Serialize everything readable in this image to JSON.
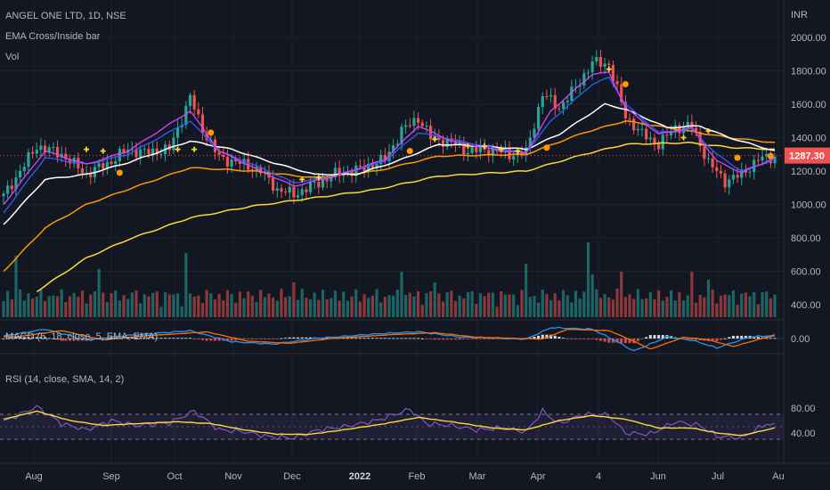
{
  "legend": {
    "symbol": "ANGEL ONE LTD, 1D, NSE",
    "indicator": "EMA Cross/Inside bar",
    "volume": "Vol",
    "macd": "MACD (6, 18, close, 5, EMA, EMA)",
    "rsi": "RSI (14, close, SMA, 14, 2)"
  },
  "currency": "INR",
  "last_price": "1287.30",
  "colors": {
    "background": "#131722",
    "up": "#26a69a",
    "down": "#ef5350",
    "ema_pink": "#e040fb",
    "ema_blue": "#2962ff",
    "ema_white": "#ffffff",
    "ema_orange": "#ff9800",
    "ema_yellow": "#fdd835",
    "rsi_line": "#7e57c2",
    "rsi_ma": "#fdd835",
    "macd_line": "#2196f3",
    "signal_line": "#ff6d00",
    "price_label": "#ef5350"
  },
  "chart_data": {
    "type": "candlestick",
    "price_axis": {
      "ticks": [
        "2000.00",
        "1800.00",
        "1600.00",
        "1400.00",
        "1200.00",
        "1000.00",
        "800.00",
        "600.00",
        "400.00"
      ],
      "values": [
        2000,
        1800,
        1600,
        1400,
        1200,
        1000,
        800,
        600,
        400
      ]
    },
    "macd_axis": {
      "ticks": [
        "0.00"
      ]
    },
    "rsi_axis": {
      "ticks": [
        "80.00",
        "40.00"
      ],
      "bands": [
        70,
        30
      ],
      "mid": 50
    },
    "x_labels": [
      {
        "label": "Aug",
        "bold": false
      },
      {
        "label": "Sep",
        "bold": false
      },
      {
        "label": "Oct",
        "bold": false
      },
      {
        "label": "Nov",
        "bold": false
      },
      {
        "label": "Dec",
        "bold": false
      },
      {
        "label": "2022",
        "bold": true
      },
      {
        "label": "Feb",
        "bold": false
      },
      {
        "label": "Mar",
        "bold": false
      },
      {
        "label": "Apr",
        "bold": false
      },
      {
        "label": "4",
        "bold": false
      },
      {
        "label": "Jun",
        "bold": false
      },
      {
        "label": "Jul",
        "bold": false
      },
      {
        "label": "Au",
        "bold": false
      }
    ],
    "close_keypoints": [
      [
        0,
        1050
      ],
      [
        8,
        1350
      ],
      [
        14,
        1300
      ],
      [
        20,
        1180
      ],
      [
        26,
        1260
      ],
      [
        30,
        1330
      ],
      [
        34,
        1310
      ],
      [
        40,
        1330
      ],
      [
        45,
        1640
      ],
      [
        48,
        1450
      ],
      [
        52,
        1280
      ],
      [
        58,
        1240
      ],
      [
        62,
        1200
      ],
      [
        66,
        1090
      ],
      [
        70,
        1060
      ],
      [
        76,
        1130
      ],
      [
        80,
        1180
      ],
      [
        86,
        1210
      ],
      [
        92,
        1270
      ],
      [
        96,
        1440
      ],
      [
        100,
        1520
      ],
      [
        103,
        1400
      ],
      [
        108,
        1370
      ],
      [
        112,
        1320
      ],
      [
        118,
        1330
      ],
      [
        122,
        1300
      ],
      [
        126,
        1310
      ],
      [
        130,
        1660
      ],
      [
        134,
        1580
      ],
      [
        138,
        1700
      ],
      [
        142,
        1850
      ],
      [
        146,
        1840
      ],
      [
        150,
        1530
      ],
      [
        154,
        1420
      ],
      [
        158,
        1360
      ],
      [
        162,
        1460
      ],
      [
        166,
        1470
      ],
      [
        170,
        1250
      ],
      [
        174,
        1140
      ],
      [
        178,
        1180
      ],
      [
        182,
        1270
      ],
      [
        186,
        1287
      ]
    ],
    "ema_pink": [
      [
        0,
        1000
      ],
      [
        10,
        1320
      ],
      [
        20,
        1240
      ],
      [
        30,
        1320
      ],
      [
        45,
        1560
      ],
      [
        52,
        1320
      ],
      [
        62,
        1200
      ],
      [
        70,
        1110
      ],
      [
        80,
        1170
      ],
      [
        92,
        1270
      ],
      [
        100,
        1470
      ],
      [
        108,
        1380
      ],
      [
        120,
        1320
      ],
      [
        126,
        1310
      ],
      [
        132,
        1560
      ],
      [
        142,
        1780
      ],
      [
        146,
        1790
      ],
      [
        150,
        1580
      ],
      [
        158,
        1420
      ],
      [
        166,
        1460
      ],
      [
        172,
        1260
      ],
      [
        178,
        1190
      ],
      [
        186,
        1280
      ]
    ],
    "ema_blue": [
      [
        0,
        950
      ],
      [
        10,
        1280
      ],
      [
        20,
        1240
      ],
      [
        30,
        1300
      ],
      [
        45,
        1500
      ],
      [
        52,
        1320
      ],
      [
        62,
        1220
      ],
      [
        70,
        1130
      ],
      [
        80,
        1170
      ],
      [
        92,
        1260
      ],
      [
        100,
        1430
      ],
      [
        108,
        1390
      ],
      [
        120,
        1330
      ],
      [
        126,
        1310
      ],
      [
        132,
        1500
      ],
      [
        142,
        1720
      ],
      [
        146,
        1760
      ],
      [
        150,
        1600
      ],
      [
        158,
        1430
      ],
      [
        166,
        1450
      ],
      [
        172,
        1300
      ],
      [
        178,
        1200
      ],
      [
        186,
        1270
      ]
    ],
    "ema_white": [
      [
        0,
        880
      ],
      [
        10,
        1150
      ],
      [
        20,
        1180
      ],
      [
        30,
        1250
      ],
      [
        45,
        1380
      ],
      [
        55,
        1330
      ],
      [
        65,
        1250
      ],
      [
        75,
        1180
      ],
      [
        85,
        1180
      ],
      [
        95,
        1260
      ],
      [
        105,
        1360
      ],
      [
        115,
        1350
      ],
      [
        126,
        1330
      ],
      [
        134,
        1420
      ],
      [
        145,
        1600
      ],
      [
        150,
        1570
      ],
      [
        160,
        1460
      ],
      [
        168,
        1470
      ],
      [
        175,
        1400
      ],
      [
        186,
        1320
      ]
    ],
    "ema_orange": [
      [
        0,
        600
      ],
      [
        10,
        860
      ],
      [
        20,
        1000
      ],
      [
        30,
        1090
      ],
      [
        45,
        1220
      ],
      [
        60,
        1200
      ],
      [
        75,
        1160
      ],
      [
        90,
        1200
      ],
      [
        105,
        1290
      ],
      [
        126,
        1300
      ],
      [
        140,
        1430
      ],
      [
        150,
        1500
      ],
      [
        165,
        1440
      ],
      [
        175,
        1400
      ],
      [
        186,
        1370
      ]
    ],
    "ema_yellow": [
      [
        8,
        480
      ],
      [
        20,
        680
      ],
      [
        30,
        790
      ],
      [
        45,
        920
      ],
      [
        60,
        990
      ],
      [
        75,
        1040
      ],
      [
        90,
        1090
      ],
      [
        105,
        1170
      ],
      [
        126,
        1200
      ],
      [
        140,
        1300
      ],
      [
        150,
        1360
      ],
      [
        165,
        1370
      ],
      [
        176,
        1340
      ],
      [
        186,
        1330
      ]
    ],
    "volume_spikes": [
      [
        3,
        230
      ],
      [
        23,
        180
      ],
      [
        44,
        240
      ],
      [
        70,
        130
      ],
      [
        96,
        170
      ],
      [
        104,
        130
      ],
      [
        126,
        200
      ],
      [
        141,
        280
      ],
      [
        142,
        160
      ],
      [
        149,
        170
      ],
      [
        166,
        170
      ],
      [
        170,
        140
      ]
    ],
    "macd_keypoints": [
      [
        0,
        8
      ],
      [
        10,
        30
      ],
      [
        20,
        -5
      ],
      [
        30,
        10
      ],
      [
        45,
        25
      ],
      [
        55,
        -10
      ],
      [
        65,
        -18
      ],
      [
        75,
        0
      ],
      [
        90,
        15
      ],
      [
        100,
        22
      ],
      [
        110,
        5
      ],
      [
        126,
        -2
      ],
      [
        132,
        35
      ],
      [
        142,
        30
      ],
      [
        148,
        -10
      ],
      [
        152,
        -40
      ],
      [
        160,
        5
      ],
      [
        166,
        -5
      ],
      [
        172,
        -30
      ],
      [
        180,
        5
      ],
      [
        186,
        10
      ]
    ],
    "rsi_keypoints": [
      [
        0,
        58
      ],
      [
        8,
        82
      ],
      [
        14,
        55
      ],
      [
        20,
        45
      ],
      [
        26,
        60
      ],
      [
        32,
        52
      ],
      [
        40,
        56
      ],
      [
        46,
        75
      ],
      [
        52,
        45
      ],
      [
        58,
        42
      ],
      [
        64,
        34
      ],
      [
        70,
        32
      ],
      [
        76,
        45
      ],
      [
        82,
        50
      ],
      [
        90,
        60
      ],
      [
        98,
        78
      ],
      [
        102,
        55
      ],
      [
        108,
        52
      ],
      [
        114,
        45
      ],
      [
        120,
        48
      ],
      [
        126,
        42
      ],
      [
        130,
        75
      ],
      [
        134,
        55
      ],
      [
        140,
        70
      ],
      [
        146,
        68
      ],
      [
        150,
        40
      ],
      [
        156,
        38
      ],
      [
        162,
        58
      ],
      [
        168,
        52
      ],
      [
        172,
        35
      ],
      [
        178,
        32
      ],
      [
        184,
        55
      ],
      [
        186,
        52
      ]
    ],
    "rsi_ma_keypoints": [
      [
        0,
        62
      ],
      [
        8,
        75
      ],
      [
        16,
        60
      ],
      [
        24,
        52
      ],
      [
        32,
        55
      ],
      [
        42,
        58
      ],
      [
        50,
        55
      ],
      [
        58,
        45
      ],
      [
        66,
        38
      ],
      [
        74,
        38
      ],
      [
        82,
        45
      ],
      [
        92,
        55
      ],
      [
        100,
        65
      ],
      [
        108,
        58
      ],
      [
        118,
        48
      ],
      [
        126,
        45
      ],
      [
        134,
        60
      ],
      [
        142,
        68
      ],
      [
        150,
        62
      ],
      [
        158,
        48
      ],
      [
        166,
        48
      ],
      [
        172,
        40
      ],
      [
        178,
        36
      ],
      [
        186,
        48
      ]
    ]
  }
}
